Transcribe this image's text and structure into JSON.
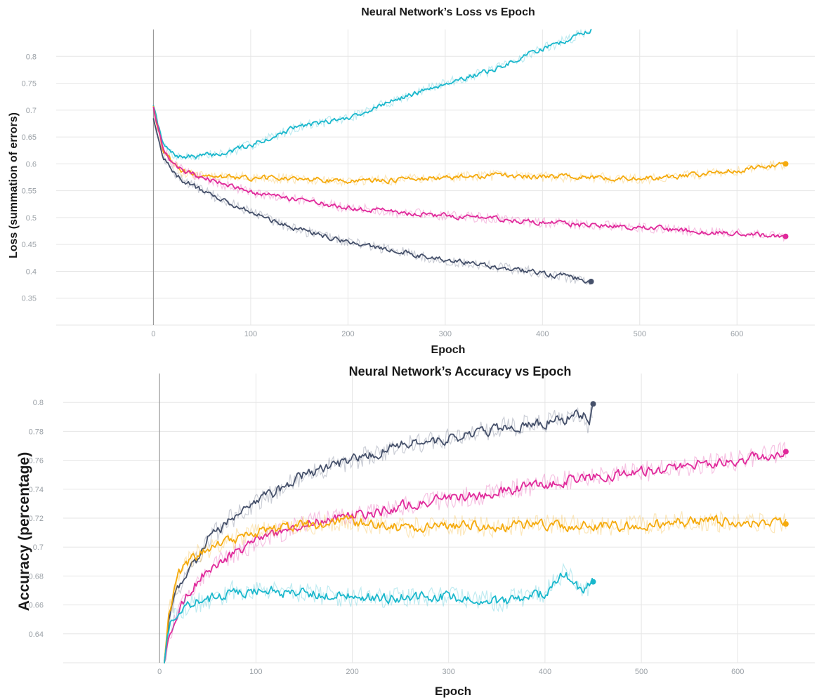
{
  "colors": {
    "dark": "#45506a",
    "cyan": "#19b7cc",
    "orange": "#f5aa0c",
    "magenta": "#e0299b"
  },
  "chart_data": [
    {
      "type": "line",
      "title": "Neural Network’s Loss vs Epoch",
      "xlabel": "Epoch",
      "ylabel": "Loss (summation of errors)",
      "xlim": [
        -100,
        680
      ],
      "ylim": [
        0.3,
        0.85
      ],
      "xticks": [
        0,
        100,
        200,
        300,
        400,
        500,
        600
      ],
      "yticks": [
        0.35,
        0.4,
        0.45,
        0.5,
        0.55,
        0.6,
        0.65,
        0.7,
        0.75,
        0.8
      ],
      "ytick_labels": [
        "0.35",
        "0.4",
        "0.45",
        "0.5",
        "0.55",
        "0.6",
        "0.65",
        "0.7",
        "0.75",
        "0.8"
      ],
      "grid": true,
      "series": [
        {
          "color": "cyan",
          "x": [
            0,
            10,
            20,
            30,
            50,
            75,
            100,
            150,
            200,
            250,
            300,
            350,
            400,
            425,
            450
          ],
          "y": [
            0.705,
            0.635,
            0.618,
            0.612,
            0.615,
            0.62,
            0.635,
            0.67,
            0.685,
            0.72,
            0.75,
            0.775,
            0.815,
            0.83,
            0.85
          ]
        },
        {
          "color": "orange",
          "x": [
            0,
            10,
            20,
            30,
            50,
            100,
            150,
            200,
            250,
            300,
            350,
            400,
            450,
            500,
            550,
            600,
            650
          ],
          "y": [
            0.705,
            0.625,
            0.6,
            0.585,
            0.578,
            0.574,
            0.572,
            0.567,
            0.57,
            0.575,
            0.578,
            0.576,
            0.575,
            0.572,
            0.578,
            0.588,
            0.6
          ],
          "end_marker": true
        },
        {
          "color": "magenta",
          "x": [
            0,
            10,
            20,
            30,
            50,
            75,
            100,
            150,
            200,
            250,
            300,
            350,
            400,
            450,
            500,
            550,
            600,
            650
          ],
          "y": [
            0.705,
            0.625,
            0.6,
            0.588,
            0.575,
            0.56,
            0.548,
            0.532,
            0.518,
            0.51,
            0.504,
            0.498,
            0.49,
            0.486,
            0.482,
            0.476,
            0.47,
            0.465
          ],
          "end_marker": true
        },
        {
          "color": "dark",
          "x": [
            0,
            10,
            20,
            30,
            50,
            75,
            100,
            125,
            150,
            200,
            250,
            300,
            350,
            400,
            425,
            450
          ],
          "y": [
            0.685,
            0.615,
            0.585,
            0.57,
            0.55,
            0.53,
            0.51,
            0.492,
            0.477,
            0.455,
            0.438,
            0.42,
            0.41,
            0.396,
            0.39,
            0.381
          ],
          "end_marker": true
        }
      ]
    },
    {
      "type": "line",
      "title": "Neural Network’s Accuracy vs Epoch",
      "xlabel": "Epoch",
      "ylabel": "Accuracy (percentage)",
      "xlim": [
        -100,
        680
      ],
      "ylim": [
        0.62,
        0.82
      ],
      "xticks": [
        0,
        100,
        200,
        300,
        400,
        500,
        600
      ],
      "yticks": [
        0.64,
        0.66,
        0.68,
        0.7,
        0.72,
        0.74,
        0.76,
        0.78,
        0.8
      ],
      "ytick_labels": [
        "0.64",
        "0.66",
        "0.68",
        "0.7",
        "0.72",
        "0.74",
        "0.76",
        "0.78",
        "0.8"
      ],
      "grid": true,
      "series": [
        {
          "color": "dark",
          "x": [
            5,
            10,
            20,
            30,
            40,
            50,
            75,
            100,
            125,
            150,
            200,
            250,
            300,
            350,
            400,
            440,
            445,
            450
          ],
          "y": [
            0.62,
            0.65,
            0.672,
            0.685,
            0.692,
            0.705,
            0.72,
            0.73,
            0.74,
            0.75,
            0.76,
            0.77,
            0.775,
            0.782,
            0.786,
            0.792,
            0.782,
            0.799
          ],
          "end_marker": true
        },
        {
          "color": "magenta",
          "x": [
            5,
            10,
            20,
            30,
            40,
            50,
            75,
            100,
            125,
            150,
            200,
            250,
            300,
            350,
            400,
            450,
            500,
            550,
            600,
            650
          ],
          "y": [
            0.62,
            0.64,
            0.655,
            0.668,
            0.677,
            0.684,
            0.695,
            0.704,
            0.71,
            0.716,
            0.722,
            0.728,
            0.733,
            0.738,
            0.744,
            0.748,
            0.752,
            0.756,
            0.76,
            0.766
          ],
          "end_marker": true
        },
        {
          "color": "orange",
          "x": [
            5,
            10,
            20,
            30,
            40,
            50,
            75,
            100,
            125,
            150,
            200,
            250,
            300,
            350,
            400,
            450,
            500,
            550,
            600,
            650
          ],
          "y": [
            0.62,
            0.655,
            0.68,
            0.69,
            0.695,
            0.698,
            0.705,
            0.71,
            0.713,
            0.715,
            0.718,
            0.713,
            0.715,
            0.714,
            0.716,
            0.715,
            0.715,
            0.718,
            0.717,
            0.716
          ],
          "end_marker": true
        },
        {
          "color": "cyan",
          "x": [
            5,
            10,
            20,
            30,
            50,
            75,
            100,
            150,
            200,
            250,
            300,
            350,
            400,
            420,
            440,
            450
          ],
          "y": [
            0.62,
            0.645,
            0.655,
            0.66,
            0.663,
            0.67,
            0.67,
            0.668,
            0.665,
            0.665,
            0.666,
            0.662,
            0.668,
            0.683,
            0.668,
            0.676
          ],
          "end_marker": true
        }
      ]
    }
  ]
}
